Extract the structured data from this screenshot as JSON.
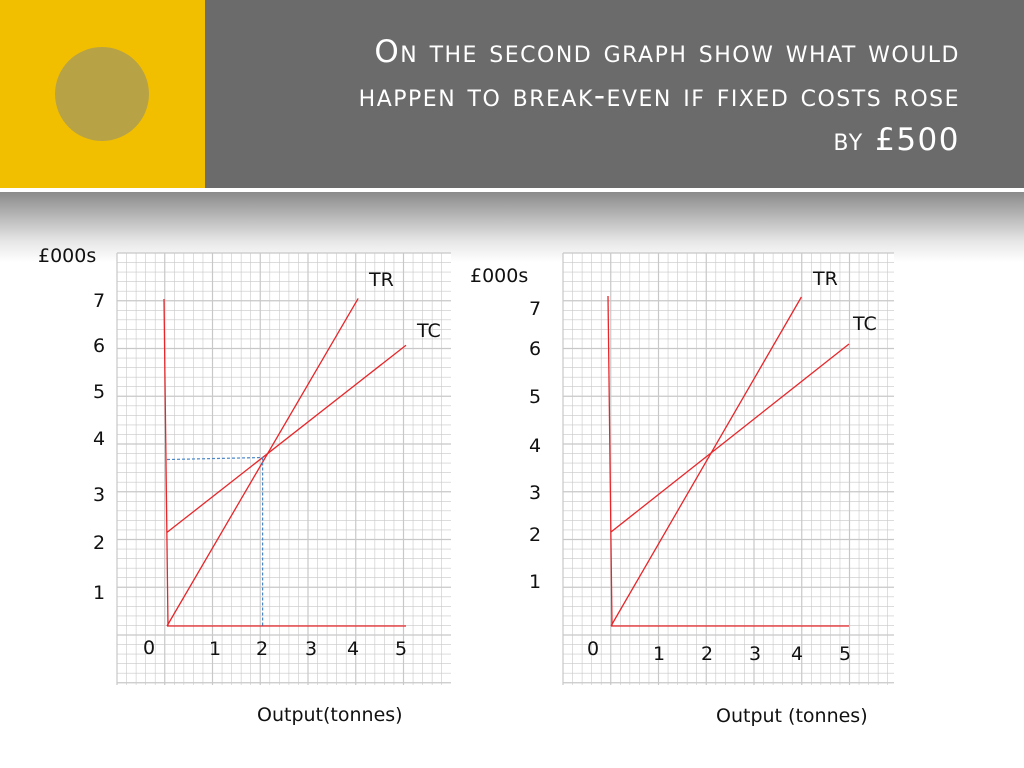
{
  "slide": {
    "title_line1": "On the second graph show what would",
    "title_line2": "happen to break-even if fixed costs rose",
    "title_line3": "by £500",
    "colors": {
      "header_gray": "#6b6b6b",
      "accent_yellow": "#f2bf00",
      "accent_circle": "#b8a246",
      "line_red": "#e8262a",
      "guide_blue": "#4a86c8",
      "grid_gray": "#c8c8c8"
    }
  },
  "chart_data": [
    {
      "type": "line",
      "ylabel": "£000s",
      "xlabel": "Output(tonnes)",
      "origin_label": "0",
      "x_ticks": [
        "1",
        "2",
        "3",
        "4",
        "5"
      ],
      "y_ticks": [
        "1",
        "2",
        "3",
        "4",
        "5",
        "6",
        "7"
      ],
      "xlim": [
        0,
        5
      ],
      "ylim": [
        0,
        7
      ],
      "grid": true,
      "series": [
        {
          "name": "TR",
          "x": [
            0,
            4
          ],
          "y": [
            0,
            7
          ]
        },
        {
          "name": "TC",
          "x": [
            0,
            5
          ],
          "y": [
            2,
            6
          ]
        }
      ],
      "break_even": {
        "x": 2,
        "y": 3.6,
        "guides": true
      }
    },
    {
      "type": "line",
      "ylabel": "£000s",
      "xlabel": "Output (tonnes)",
      "origin_label": "0",
      "x_ticks": [
        "1",
        "2",
        "3",
        "4",
        "5"
      ],
      "y_ticks": [
        "1",
        "2",
        "3",
        "4",
        "5",
        "6",
        "7"
      ],
      "xlim": [
        0,
        5
      ],
      "ylim": [
        0,
        7
      ],
      "grid": true,
      "series": [
        {
          "name": "TR",
          "x": [
            0,
            4
          ],
          "y": [
            0,
            7
          ]
        },
        {
          "name": "TC",
          "x": [
            0,
            5
          ],
          "y": [
            2,
            6
          ]
        }
      ]
    }
  ]
}
